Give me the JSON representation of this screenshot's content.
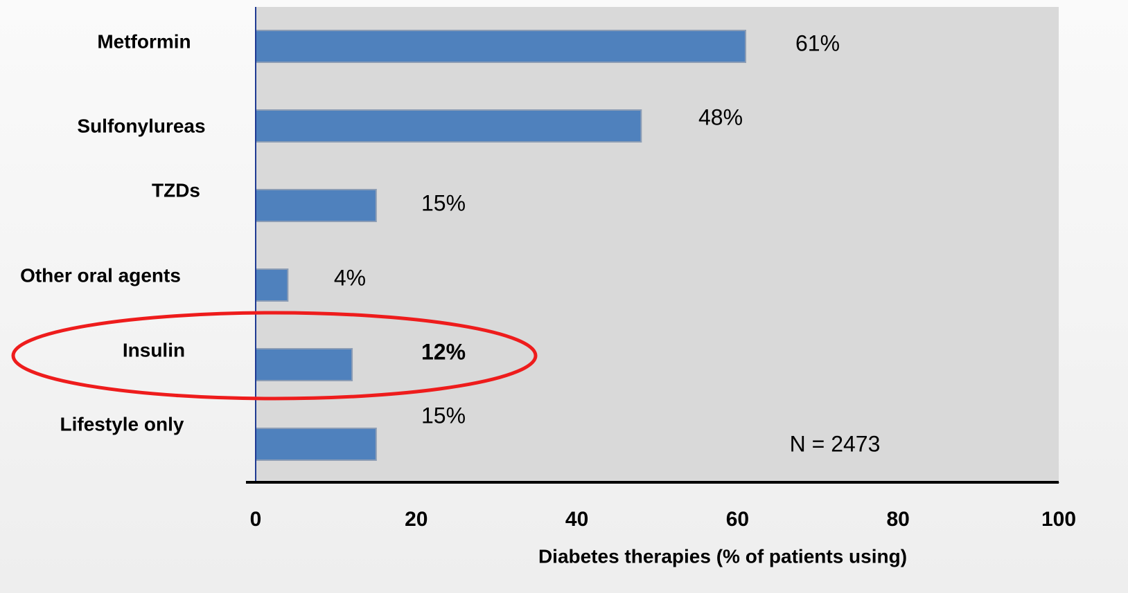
{
  "chart_data": {
    "type": "bar",
    "orientation": "horizontal",
    "categories": [
      "Metformin",
      "Sulfonylureas",
      "TZDs",
      "Other oral agents",
      "Insulin",
      "Lifestyle only"
    ],
    "values": [
      61,
      48,
      15,
      4,
      12,
      15
    ],
    "value_labels": [
      "61%",
      "48%",
      "15%",
      "4%",
      "12%",
      "15%"
    ],
    "color": "#4f81bd",
    "xlim": [
      0,
      100
    ],
    "xticks": [
      0,
      20,
      40,
      60,
      80,
      100
    ],
    "xlabel": "Diabetes therapies (% of patients using)",
    "annotation": "N = 2473"
  }
}
